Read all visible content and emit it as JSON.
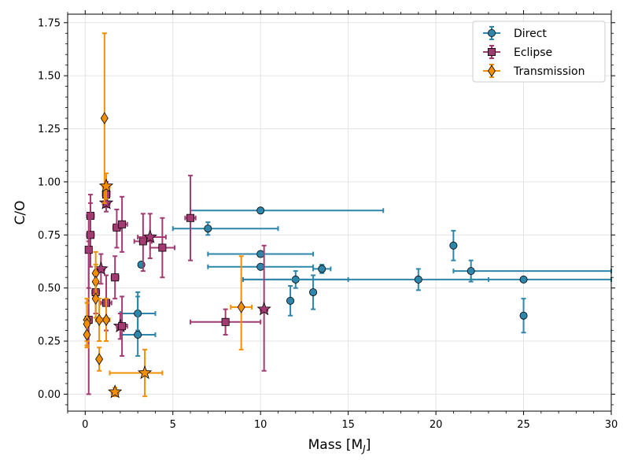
{
  "chart_data": {
    "type": "scatter",
    "xlabel": "Mass [M",
    "xlabel_sub": "J",
    "xlabel_close": "]",
    "ylabel": "C/O",
    "xlim": [
      -1,
      30
    ],
    "ylim": [
      -0.08,
      1.79
    ],
    "xticks": [
      0,
      5,
      10,
      15,
      20,
      25,
      30
    ],
    "yticks": [
      0.0,
      0.25,
      0.5,
      0.75,
      1.0,
      1.25,
      1.5,
      1.75
    ],
    "xtick_labels": [
      "0",
      "5",
      "10",
      "15",
      "20",
      "25",
      "30"
    ],
    "ytick_labels": [
      "0.00",
      "0.25",
      "0.50",
      "0.75",
      "1.00",
      "1.25",
      "1.50",
      "1.75"
    ],
    "grid": true,
    "legend_position": "top-right",
    "series": [
      {
        "name": "Direct",
        "color": "#2e86ab",
        "marker": "circle",
        "points": [
          {
            "x": 10,
            "y": 0.865,
            "xlo": 6,
            "xhi": 17,
            "ylo": 0.865,
            "yhi": 0.865,
            "star": false
          },
          {
            "x": 7,
            "y": 0.78,
            "xlo": 5,
            "xhi": 11,
            "ylo": 0.75,
            "yhi": 0.81,
            "star": false
          },
          {
            "x": 10,
            "y": 0.66,
            "xlo": 7,
            "xhi": 13,
            "ylo": 0.66,
            "yhi": 0.66,
            "star": false
          },
          {
            "x": 3.2,
            "y": 0.61,
            "xlo": 3.2,
            "xhi": 3.2,
            "ylo": 0.61,
            "yhi": 0.61,
            "star": false
          },
          {
            "x": 10,
            "y": 0.6,
            "xlo": 7,
            "xhi": 13,
            "ylo": 0.6,
            "yhi": 0.6,
            "star": false
          },
          {
            "x": 13.5,
            "y": 0.59,
            "xlo": 13,
            "xhi": 14,
            "ylo": 0.57,
            "yhi": 0.61,
            "star": false
          },
          {
            "x": 12,
            "y": 0.54,
            "xlo": 9,
            "xhi": 15,
            "ylo": 0.5,
            "yhi": 0.58,
            "star": false
          },
          {
            "x": 19,
            "y": 0.54,
            "xlo": 9,
            "xhi": 23,
            "ylo": 0.49,
            "yhi": 0.59,
            "star": false
          },
          {
            "x": 25,
            "y": 0.54,
            "xlo": 22,
            "xhi": 30,
            "ylo": 0.54,
            "yhi": 0.54,
            "star": false
          },
          {
            "x": 22,
            "y": 0.58,
            "xlo": 21,
            "xhi": 30,
            "ylo": 0.53,
            "yhi": 0.63,
            "star": false
          },
          {
            "x": 21,
            "y": 0.7,
            "xlo": 21,
            "xhi": 21,
            "ylo": 0.63,
            "yhi": 0.77,
            "star": false
          },
          {
            "x": 13,
            "y": 0.48,
            "xlo": 13,
            "xhi": 13,
            "ylo": 0.4,
            "yhi": 0.56,
            "star": false
          },
          {
            "x": 11.7,
            "y": 0.44,
            "xlo": 11.7,
            "xhi": 11.7,
            "ylo": 0.37,
            "yhi": 0.51,
            "star": false
          },
          {
            "x": 3.0,
            "y": 0.38,
            "xlo": 2.0,
            "xhi": 4.0,
            "ylo": 0.3,
            "yhi": 0.46,
            "star": false
          },
          {
            "x": 3.0,
            "y": 0.28,
            "xlo": 2.0,
            "xhi": 4.0,
            "ylo": 0.18,
            "yhi": 0.48,
            "star": false
          },
          {
            "x": 25,
            "y": 0.37,
            "xlo": 25,
            "xhi": 25,
            "ylo": 0.29,
            "yhi": 0.45,
            "star": false
          }
        ]
      },
      {
        "name": "Eclipse",
        "color": "#a23b72",
        "marker": "square",
        "points": [
          {
            "x": 0.3,
            "y": 0.84,
            "xlo": 0.1,
            "xhi": 0.5,
            "ylo": 0.74,
            "yhi": 0.94,
            "star": false
          },
          {
            "x": 0.3,
            "y": 0.75,
            "xlo": 0.1,
            "xhi": 0.5,
            "ylo": 0.6,
            "yhi": 0.9,
            "star": false
          },
          {
            "x": 0.2,
            "y": 0.68,
            "xlo": 0.05,
            "xhi": 0.35,
            "ylo": 0.5,
            "yhi": 0.85,
            "star": false
          },
          {
            "x": 1.2,
            "y": 0.94,
            "xlo": 1.0,
            "xhi": 1.4,
            "ylo": 0.88,
            "yhi": 1.0,
            "star": false
          },
          {
            "x": 1.2,
            "y": 0.9,
            "xlo": 1.0,
            "xhi": 1.4,
            "ylo": 0.86,
            "yhi": 0.94,
            "star": true
          },
          {
            "x": 0.9,
            "y": 0.59,
            "xlo": 0.7,
            "xhi": 1.1,
            "ylo": 0.52,
            "yhi": 0.66,
            "star": true
          },
          {
            "x": 0.6,
            "y": 0.48,
            "xlo": 0.4,
            "xhi": 0.8,
            "ylo": 0.38,
            "yhi": 0.58,
            "star": false
          },
          {
            "x": 1.2,
            "y": 0.43,
            "xlo": 0.9,
            "xhi": 1.5,
            "ylo": 0.3,
            "yhi": 0.56,
            "star": false
          },
          {
            "x": 0.2,
            "y": 0.35,
            "xlo": 0.1,
            "xhi": 0.3,
            "ylo": 0.0,
            "yhi": 0.72,
            "star": false
          },
          {
            "x": 1.8,
            "y": 0.785,
            "xlo": 1.6,
            "xhi": 2.0,
            "ylo": 0.69,
            "yhi": 0.87,
            "star": false
          },
          {
            "x": 2.1,
            "y": 0.8,
            "xlo": 1.8,
            "xhi": 2.4,
            "ylo": 0.67,
            "yhi": 0.93,
            "star": false
          },
          {
            "x": 1.7,
            "y": 0.55,
            "xlo": 1.5,
            "xhi": 1.9,
            "ylo": 0.45,
            "yhi": 0.65,
            "star": false
          },
          {
            "x": 2.0,
            "y": 0.32,
            "xlo": 1.8,
            "xhi": 2.2,
            "ylo": 0.26,
            "yhi": 0.38,
            "star": true
          },
          {
            "x": 2.1,
            "y": 0.32,
            "xlo": 1.8,
            "xhi": 2.4,
            "ylo": 0.18,
            "yhi": 0.46,
            "star": false
          },
          {
            "x": 3.3,
            "y": 0.72,
            "xlo": 2.8,
            "xhi": 3.8,
            "ylo": 0.58,
            "yhi": 0.85,
            "star": false
          },
          {
            "x": 3.7,
            "y": 0.74,
            "xlo": 3.0,
            "xhi": 4.6,
            "ylo": 0.64,
            "yhi": 0.85,
            "star": true
          },
          {
            "x": 4.4,
            "y": 0.69,
            "xlo": 3.7,
            "xhi": 5.1,
            "ylo": 0.55,
            "yhi": 0.83,
            "star": false
          },
          {
            "x": 6.0,
            "y": 0.83,
            "xlo": 5.7,
            "xhi": 6.3,
            "ylo": 0.63,
            "yhi": 1.03,
            "star": false
          },
          {
            "x": 8.0,
            "y": 0.34,
            "xlo": 6.0,
            "xhi": 10.0,
            "ylo": 0.28,
            "yhi": 0.4,
            "star": false
          },
          {
            "x": 10.2,
            "y": 0.4,
            "xlo": 10.0,
            "xhi": 10.4,
            "ylo": 0.11,
            "yhi": 0.7,
            "star": true
          }
        ]
      },
      {
        "name": "Transmission",
        "color": "#f18f01",
        "marker": "diamond",
        "points": [
          {
            "x": 1.1,
            "y": 1.3,
            "xlo": 1.1,
            "xhi": 1.1,
            "ylo": 0.9,
            "yhi": 1.7,
            "star": false
          },
          {
            "x": 1.2,
            "y": 0.98,
            "xlo": 1.0,
            "xhi": 1.4,
            "ylo": 0.92,
            "yhi": 1.04,
            "star": true
          },
          {
            "x": 0.6,
            "y": 0.57,
            "xlo": 0.5,
            "xhi": 0.7,
            "ylo": 0.47,
            "yhi": 0.67,
            "star": false
          },
          {
            "x": 0.6,
            "y": 0.53,
            "xlo": 0.5,
            "xhi": 0.7,
            "ylo": 0.45,
            "yhi": 0.61,
            "star": false
          },
          {
            "x": 0.6,
            "y": 0.45,
            "xlo": 0.5,
            "xhi": 0.7,
            "ylo": 0.36,
            "yhi": 0.54,
            "star": false
          },
          {
            "x": 0.1,
            "y": 0.35,
            "xlo": 0.05,
            "xhi": 0.15,
            "ylo": 0.25,
            "yhi": 0.45,
            "star": false
          },
          {
            "x": 0.1,
            "y": 0.33,
            "xlo": 0.05,
            "xhi": 0.15,
            "ylo": 0.23,
            "yhi": 0.43,
            "star": false
          },
          {
            "x": 0.1,
            "y": 0.28,
            "xlo": 0.05,
            "xhi": 0.15,
            "ylo": 0.22,
            "yhi": 0.34,
            "star": false
          },
          {
            "x": 0.8,
            "y": 0.35,
            "xlo": 0.6,
            "xhi": 1.0,
            "ylo": 0.25,
            "yhi": 0.45,
            "star": false
          },
          {
            "x": 1.2,
            "y": 0.35,
            "xlo": 1.0,
            "xhi": 1.4,
            "ylo": 0.25,
            "yhi": 0.45,
            "star": false
          },
          {
            "x": 0.8,
            "y": 0.165,
            "xlo": 0.7,
            "xhi": 0.9,
            "ylo": 0.11,
            "yhi": 0.22,
            "star": false
          },
          {
            "x": 1.7,
            "y": 0.01,
            "xlo": 1.5,
            "xhi": 1.9,
            "ylo": -0.01,
            "yhi": 0.03,
            "star": true
          },
          {
            "x": 3.4,
            "y": 0.1,
            "xlo": 1.4,
            "xhi": 4.4,
            "ylo": -0.01,
            "yhi": 0.21,
            "star": true
          },
          {
            "x": 8.9,
            "y": 0.41,
            "xlo": 8.3,
            "xhi": 9.5,
            "ylo": 0.21,
            "yhi": 0.65,
            "star": false
          }
        ]
      }
    ]
  }
}
